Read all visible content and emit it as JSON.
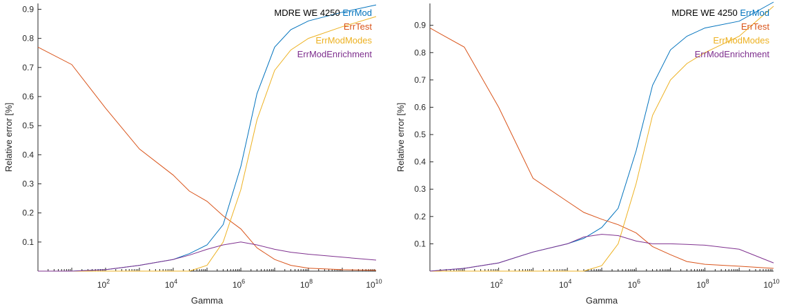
{
  "chart_data": [
    {
      "type": "line",
      "xscale": "log",
      "xlim": [
        1,
        10000000000
      ],
      "ylim": [
        0,
        0.92
      ],
      "xlabel": "Gamma",
      "ylabel": "Relative error [%]",
      "yticks": [
        "0.1",
        "0.2",
        "0.3",
        "0.4",
        "0.5",
        "0.6",
        "0.7",
        "0.8",
        "0.9"
      ],
      "xticks": [
        {
          "base": "10",
          "exp": "2",
          "value": 100
        },
        {
          "base": "10",
          "exp": "4",
          "value": 10000
        },
        {
          "base": "10",
          "exp": "6",
          "value": 1000000
        },
        {
          "base": "10",
          "exp": "8",
          "value": 100000000
        },
        {
          "base": "10",
          "exp": "10",
          "value": 10000000000
        }
      ],
      "legend_title": "MDRE WE 4250",
      "legend_position": "top-right",
      "grid": false,
      "series": [
        {
          "name": "ErrMod",
          "color": "#0072BD",
          "x": [
            1,
            10,
            100,
            1000,
            10000,
            30000,
            100000,
            300000,
            1000000,
            3000000,
            10000000,
            30000000,
            100000000,
            1000000000,
            10000000000
          ],
          "y": [
            0.0,
            0.0,
            0.005,
            0.02,
            0.04,
            0.06,
            0.09,
            0.16,
            0.36,
            0.61,
            0.77,
            0.83,
            0.86,
            0.89,
            0.915
          ]
        },
        {
          "name": "ErrTest",
          "color": "#D95319",
          "x": [
            1,
            10,
            100,
            1000,
            10000,
            30000,
            100000,
            300000,
            1000000,
            3000000,
            10000000,
            30000000,
            100000000,
            1000000000,
            10000000000
          ],
          "y": [
            0.77,
            0.71,
            0.56,
            0.42,
            0.33,
            0.275,
            0.24,
            0.19,
            0.145,
            0.08,
            0.04,
            0.02,
            0.01,
            0.005,
            0.003
          ]
        },
        {
          "name": "ErrModModes",
          "color": "#EDB120",
          "x": [
            1,
            10,
            100,
            1000,
            10000,
            30000,
            100000,
            300000,
            1000000,
            3000000,
            10000000,
            30000000,
            100000000,
            1000000000,
            10000000000
          ],
          "y": [
            0.0,
            0.0,
            0.0,
            0.0,
            0.0,
            0.0,
            0.02,
            0.1,
            0.28,
            0.52,
            0.69,
            0.76,
            0.8,
            0.84,
            0.875
          ]
        },
        {
          "name": "ErrModEnrichment",
          "color": "#7E2F8E",
          "x": [
            1,
            10,
            100,
            1000,
            10000,
            30000,
            100000,
            300000,
            1000000,
            3000000,
            10000000,
            30000000,
            100000000,
            1000000000,
            10000000000
          ],
          "y": [
            0.0,
            0.0,
            0.005,
            0.02,
            0.04,
            0.055,
            0.075,
            0.09,
            0.1,
            0.09,
            0.075,
            0.065,
            0.058,
            0.048,
            0.038
          ]
        }
      ]
    },
    {
      "type": "line",
      "xscale": "log",
      "xlim": [
        1,
        10000000000
      ],
      "ylim": [
        0,
        0.98
      ],
      "xlabel": "Gamma",
      "ylabel": "Relative error [%]",
      "yticks": [
        "0.1",
        "0.2",
        "0.3",
        "0.4",
        "0.5",
        "0.6",
        "0.7",
        "0.8",
        "0.9"
      ],
      "xticks": [
        {
          "base": "10",
          "exp": "2",
          "value": 100
        },
        {
          "base": "10",
          "exp": "4",
          "value": 10000
        },
        {
          "base": "10",
          "exp": "6",
          "value": 1000000
        },
        {
          "base": "10",
          "exp": "8",
          "value": 100000000
        },
        {
          "base": "10",
          "exp": "10",
          "value": 10000000000
        }
      ],
      "legend_title": "MDRE WE 4250",
      "legend_position": "top-right",
      "grid": false,
      "series": [
        {
          "name": "ErrMod",
          "color": "#0072BD",
          "x": [
            1,
            10,
            100,
            1000,
            10000,
            30000,
            100000,
            300000,
            1000000,
            3000000,
            10000000,
            30000000,
            100000000,
            1000000000,
            10000000000
          ],
          "y": [
            0.0,
            0.01,
            0.03,
            0.07,
            0.1,
            0.12,
            0.16,
            0.23,
            0.44,
            0.68,
            0.81,
            0.86,
            0.89,
            0.915,
            0.985
          ]
        },
        {
          "name": "ErrTest",
          "color": "#D95319",
          "x": [
            1,
            10,
            100,
            1000,
            10000,
            30000,
            100000,
            300000,
            1000000,
            3000000,
            10000000,
            30000000,
            100000000,
            1000000000,
            10000000000
          ],
          "y": [
            0.89,
            0.82,
            0.6,
            0.34,
            0.255,
            0.215,
            0.19,
            0.17,
            0.14,
            0.09,
            0.06,
            0.035,
            0.025,
            0.018,
            0.01
          ]
        },
        {
          "name": "ErrModModes",
          "color": "#EDB120",
          "x": [
            1,
            10,
            100,
            1000,
            10000,
            30000,
            100000,
            300000,
            1000000,
            3000000,
            10000000,
            30000000,
            100000000,
            1000000000,
            10000000000
          ],
          "y": [
            0.0,
            0.0,
            0.0,
            0.0,
            0.0,
            0.0,
            0.02,
            0.1,
            0.32,
            0.57,
            0.7,
            0.76,
            0.8,
            0.86,
            0.97
          ]
        },
        {
          "name": "ErrModEnrichment",
          "color": "#7E2F8E",
          "x": [
            1,
            10,
            100,
            1000,
            10000,
            30000,
            100000,
            300000,
            1000000,
            3000000,
            10000000,
            30000000,
            100000000,
            1000000000,
            10000000000
          ],
          "y": [
            0.0,
            0.01,
            0.03,
            0.07,
            0.1,
            0.125,
            0.135,
            0.13,
            0.11,
            0.1,
            0.1,
            0.098,
            0.095,
            0.08,
            0.03
          ]
        }
      ]
    }
  ]
}
